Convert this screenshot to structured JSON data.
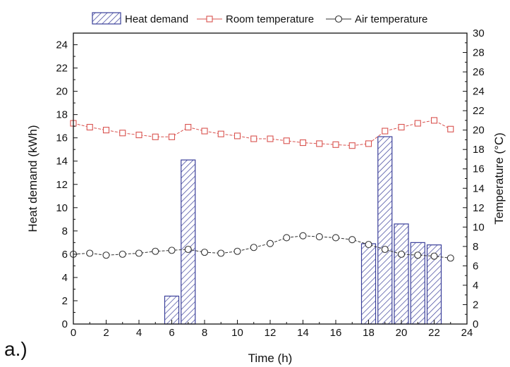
{
  "panel_label": "a.)",
  "chart_data": {
    "type": "bar+line",
    "xlabel": "Time (h)",
    "ylabel_left": "Heat demand (kWh)",
    "ylabel_right": "Temperature (°C)",
    "xlim": [
      0,
      24
    ],
    "ylim_left": [
      0,
      25
    ],
    "ylim_right": [
      0,
      30
    ],
    "x_ticks": [
      0,
      2,
      4,
      6,
      8,
      10,
      12,
      14,
      16,
      18,
      20,
      22,
      24
    ],
    "y_left_ticks": [
      0,
      2,
      4,
      6,
      8,
      10,
      12,
      14,
      16,
      18,
      20,
      22,
      24
    ],
    "y_right_ticks": [
      0,
      2,
      4,
      6,
      8,
      10,
      12,
      14,
      16,
      18,
      20,
      22,
      24,
      26,
      28,
      30
    ],
    "legend_position": "top-center",
    "grid": false,
    "series": [
      {
        "name": "Heat demand",
        "kind": "bar",
        "axis": "left",
        "color": "#3a3f9a",
        "pattern": "diagonal-hatch",
        "x": [
          6,
          7,
          18,
          19,
          20,
          21,
          22
        ],
        "values": [
          2.4,
          14.1,
          6.9,
          16.1,
          8.6,
          7.0,
          6.8
        ]
      },
      {
        "name": "Room temperature",
        "kind": "line",
        "axis": "right",
        "color": "#d9534f",
        "marker": "square",
        "x": [
          0,
          1,
          2,
          3,
          4,
          5,
          6,
          7,
          8,
          9,
          10,
          11,
          12,
          13,
          14,
          15,
          16,
          17,
          18,
          19,
          20,
          21,
          22,
          23
        ],
        "values": [
          20.7,
          20.3,
          20.0,
          19.7,
          19.5,
          19.3,
          19.3,
          20.3,
          19.9,
          19.6,
          19.4,
          19.1,
          19.1,
          18.9,
          18.7,
          18.6,
          18.5,
          18.4,
          18.6,
          19.9,
          20.3,
          20.7,
          21.0,
          20.1
        ]
      },
      {
        "name": "Air temperature",
        "kind": "line",
        "axis": "right",
        "color": "#333333",
        "marker": "circle",
        "x": [
          0,
          1,
          2,
          3,
          4,
          5,
          6,
          7,
          8,
          9,
          10,
          11,
          12,
          13,
          14,
          15,
          16,
          17,
          18,
          19,
          20,
          21,
          22,
          23
        ],
        "values": [
          7.2,
          7.3,
          7.1,
          7.2,
          7.3,
          7.5,
          7.6,
          7.7,
          7.4,
          7.3,
          7.5,
          7.9,
          8.3,
          8.9,
          9.1,
          9.0,
          8.9,
          8.7,
          8.2,
          7.7,
          7.2,
          7.1,
          7.0,
          6.8
        ]
      }
    ]
  }
}
